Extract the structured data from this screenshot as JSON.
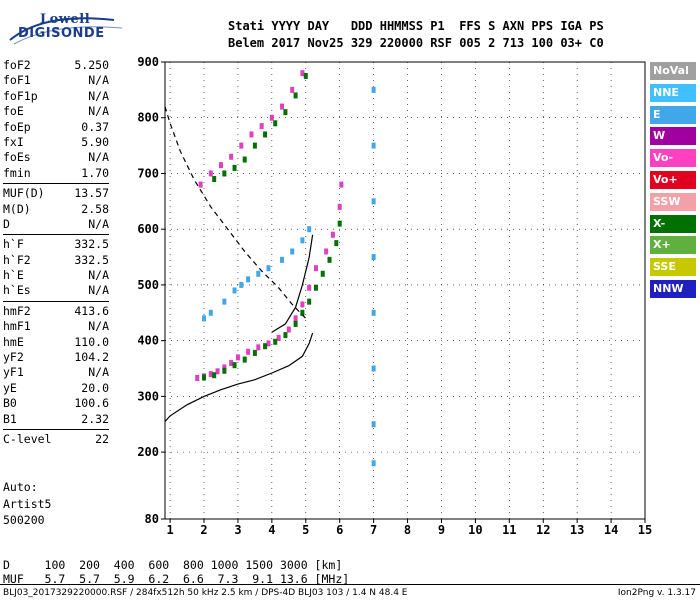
{
  "logo": {
    "line1": "Lowell",
    "line2": "DIGISONDE"
  },
  "header": {
    "line1": "Stati YYYY DAY   DDD HHMMSS P1  FFS S AXN PPS IGA PS",
    "line2": "Belem 2017 Nov25 329 220000 RSF 005 2 713 100 03+ C0"
  },
  "params": {
    "group1": [
      {
        "name": "foF2",
        "value": "5.250"
      },
      {
        "name": "foF1",
        "value": "N/A"
      },
      {
        "name": "foF1p",
        "value": "N/A"
      },
      {
        "name": "foE",
        "value": "N/A"
      },
      {
        "name": "foEp",
        "value": "0.37"
      },
      {
        "name": "fxI",
        "value": "5.90"
      },
      {
        "name": "foEs",
        "value": "N/A"
      },
      {
        "name": "fmin",
        "value": "1.70"
      }
    ],
    "group2": [
      {
        "name": "MUF(D)",
        "value": "13.57"
      },
      {
        "name": "M(D)",
        "value": "2.58"
      },
      {
        "name": "D",
        "value": "N/A"
      }
    ],
    "group3": [
      {
        "name": "h`F",
        "value": "332.5"
      },
      {
        "name": "h`F2",
        "value": "332.5"
      },
      {
        "name": "h`E",
        "value": "N/A"
      },
      {
        "name": "h`Es",
        "value": "N/A"
      }
    ],
    "group4": [
      {
        "name": "hmF2",
        "value": "413.6"
      },
      {
        "name": "hmF1",
        "value": "N/A"
      },
      {
        "name": "hmE",
        "value": "110.0"
      },
      {
        "name": "yF2",
        "value": "104.2"
      },
      {
        "name": "yF1",
        "value": "N/A"
      },
      {
        "name": "yE",
        "value": "20.0"
      },
      {
        "name": "B0",
        "value": "100.6"
      },
      {
        "name": "B1",
        "value": "2.32"
      }
    ],
    "group5": [
      {
        "name": "C-level",
        "value": "22"
      }
    ]
  },
  "auto": {
    "label": "Auto:",
    "program": "Artist5",
    "version": "500200"
  },
  "legend": [
    {
      "label": "NoVal",
      "bg": "#a0a0a0",
      "fg": "#ffffff"
    },
    {
      "label": "NNE",
      "bg": "#40c0ff",
      "fg": "#ffffff"
    },
    {
      "label": "E",
      "bg": "#40a8e8",
      "fg": "#ffffff"
    },
    {
      "label": "W",
      "bg": "#a000a0",
      "fg": "#ffffff"
    },
    {
      "label": "Vo-",
      "bg": "#ff40c0",
      "fg": "#ffffff"
    },
    {
      "label": "Vo+",
      "bg": "#e00020",
      "fg": "#ffffff"
    },
    {
      "label": "SSW",
      "bg": "#f4a0a8",
      "fg": "#ffffff"
    },
    {
      "label": "X-",
      "bg": "#007000",
      "fg": "#ffffff"
    },
    {
      "label": "X+",
      "bg": "#60b040",
      "fg": "#ffffff"
    },
    {
      "label": "SSE",
      "bg": "#c8c800",
      "fg": "#ffffff"
    },
    {
      "label": "NNW",
      "bg": "#2020c0",
      "fg": "#ffffff"
    }
  ],
  "footer": {
    "dline": "D     100  200  400  600  800 1000 1500 3000 [km]",
    "mufline": "MUF   5.7  5.7  5.9  6.2  6.6  7.3  9.1 13.6 [MHz]",
    "file": "BLJ03_2017329220000.RSF / 284fx512h 50 kHz 2.5 km / DPS-4D BLJ03 103 / 1.4 N 48.4 E",
    "version": "Ion2Png v. 1.3.17"
  },
  "chart_data": {
    "type": "scatter",
    "title": "",
    "xlabel": "",
    "ylabel": "",
    "xlim": [
      0.85,
      15
    ],
    "ylim": [
      80,
      900
    ],
    "x_ticks": [
      1,
      2,
      3,
      4,
      5,
      6,
      7,
      8,
      9,
      10,
      11,
      12,
      13,
      14,
      15
    ],
    "y_ticks": [
      80,
      200,
      300,
      400,
      500,
      600,
      700,
      800,
      900
    ],
    "grid": "dotted",
    "legend_position": "right",
    "traces": [
      {
        "name": "ordinary (O)",
        "color": "#e040c0",
        "points": [
          [
            1.8,
            333
          ],
          [
            2.0,
            336
          ],
          [
            2.2,
            340
          ],
          [
            2.4,
            345
          ],
          [
            2.6,
            352
          ],
          [
            2.8,
            360
          ],
          [
            3.0,
            370
          ],
          [
            3.3,
            380
          ],
          [
            3.6,
            388
          ],
          [
            3.9,
            395
          ],
          [
            4.2,
            405
          ],
          [
            4.5,
            420
          ],
          [
            4.7,
            440
          ],
          [
            4.9,
            465
          ],
          [
            5.1,
            495
          ],
          [
            5.3,
            530
          ],
          [
            5.6,
            560
          ],
          [
            5.8,
            590
          ],
          [
            6.0,
            640
          ],
          [
            6.05,
            680
          ],
          [
            1.9,
            680
          ],
          [
            2.2,
            700
          ],
          [
            2.5,
            715
          ],
          [
            2.8,
            730
          ],
          [
            3.1,
            750
          ],
          [
            3.4,
            770
          ],
          [
            3.7,
            785
          ],
          [
            4.0,
            800
          ],
          [
            4.3,
            820
          ],
          [
            4.6,
            850
          ],
          [
            4.9,
            880
          ]
        ]
      },
      {
        "name": "extraordinary (X)",
        "color": "#007000",
        "points": [
          [
            2.0,
            334
          ],
          [
            2.3,
            338
          ],
          [
            2.6,
            346
          ],
          [
            2.9,
            356
          ],
          [
            3.2,
            366
          ],
          [
            3.5,
            378
          ],
          [
            3.8,
            390
          ],
          [
            4.1,
            398
          ],
          [
            4.4,
            410
          ],
          [
            4.7,
            430
          ],
          [
            4.9,
            450
          ],
          [
            5.1,
            470
          ],
          [
            5.3,
            495
          ],
          [
            5.5,
            520
          ],
          [
            5.7,
            545
          ],
          [
            5.9,
            575
          ],
          [
            6.0,
            610
          ],
          [
            2.3,
            690
          ],
          [
            2.6,
            700
          ],
          [
            2.9,
            710
          ],
          [
            3.2,
            725
          ],
          [
            3.5,
            750
          ],
          [
            3.8,
            770
          ],
          [
            4.1,
            790
          ],
          [
            4.4,
            810
          ],
          [
            4.7,
            840
          ],
          [
            5.0,
            875
          ]
        ]
      },
      {
        "name": "Es / spread (E)",
        "color": "#40a8e8",
        "points": [
          [
            2.0,
            440
          ],
          [
            2.2,
            450
          ],
          [
            2.6,
            470
          ],
          [
            2.9,
            490
          ],
          [
            3.1,
            500
          ],
          [
            3.3,
            510
          ],
          [
            3.6,
            520
          ],
          [
            3.9,
            530
          ],
          [
            4.3,
            545
          ],
          [
            4.6,
            560
          ],
          [
            4.9,
            580
          ],
          [
            5.1,
            600
          ],
          [
            7.0,
            180
          ],
          [
            7.0,
            250
          ],
          [
            7.0,
            350
          ],
          [
            7.0,
            450
          ],
          [
            7.0,
            550
          ],
          [
            7.0,
            650
          ],
          [
            7.0,
            750
          ],
          [
            7.0,
            850
          ]
        ]
      }
    ],
    "profile_curves": [
      {
        "name": "real-height profile",
        "style": "solid",
        "points": [
          [
            0.85,
            255
          ],
          [
            1.0,
            265
          ],
          [
            1.5,
            285
          ],
          [
            2.0,
            300
          ],
          [
            2.5,
            312
          ],
          [
            3.0,
            322
          ],
          [
            3.5,
            330
          ],
          [
            4.0,
            342
          ],
          [
            4.5,
            355
          ],
          [
            4.9,
            372
          ],
          [
            5.1,
            395
          ],
          [
            5.2,
            413.6
          ]
        ]
      },
      {
        "name": "profile extension",
        "style": "solid",
        "points": [
          [
            4.0,
            415
          ],
          [
            4.4,
            430
          ],
          [
            4.7,
            460
          ],
          [
            4.9,
            500
          ],
          [
            5.1,
            550
          ],
          [
            5.2,
            590
          ]
        ]
      },
      {
        "name": "model trace",
        "style": "dashed",
        "points": [
          [
            0.85,
            820
          ],
          [
            1.0,
            790
          ],
          [
            1.3,
            740
          ],
          [
            1.7,
            690
          ],
          [
            2.2,
            640
          ],
          [
            2.7,
            600
          ],
          [
            3.2,
            560
          ],
          [
            3.7,
            525
          ],
          [
            4.2,
            495
          ],
          [
            4.6,
            465
          ],
          [
            5.0,
            440
          ]
        ]
      }
    ]
  }
}
